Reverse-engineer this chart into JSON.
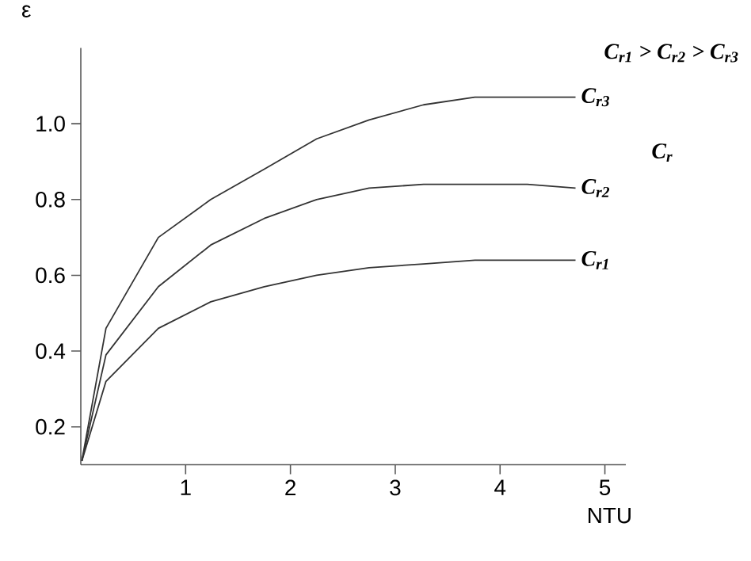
{
  "chart_data": {
    "type": "line",
    "xlabel": "NTU",
    "ylabel": "ε",
    "xlim": [
      0,
      5.2
    ],
    "ylim": [
      0.1,
      1.2
    ],
    "xticks": [
      1,
      2,
      3,
      4,
      5
    ],
    "yticks": [
      0.2,
      0.4,
      0.6,
      0.8,
      {
        "value": 1,
        "label": "1.0"
      }
    ],
    "x": [
      0.01,
      0.24,
      0.74,
      1.24,
      1.75,
      2.25,
      2.75,
      3.27,
      3.76,
      4.26,
      4.72
    ],
    "series": [
      {
        "name": "C$_{r1}$",
        "color": "#333333",
        "values": [
          0.11,
          0.32,
          0.46,
          0.53,
          0.57,
          0.6,
          0.62,
          0.63,
          0.64,
          0.64,
          0.64
        ]
      },
      {
        "name": "C$_{r2}$",
        "color": "#333333",
        "values": [
          0.11,
          0.39,
          0.57,
          0.68,
          0.75,
          0.8,
          0.83,
          0.84,
          0.84,
          0.84,
          0.83
        ]
      },
      {
        "name": "C$_{r3}$",
        "color": "#333333",
        "values": [
          0.11,
          0.46,
          0.7,
          0.8,
          0.88,
          0.96,
          1.01,
          1.05,
          1.07,
          1.07,
          1.07
        ]
      }
    ],
    "annotations": [
      "C$_{r1}$ > C$_{r2}$ > C$_{r3}$",
      "C$_{r}$"
    ],
    "grid": false,
    "legend": false,
    "marker": "none",
    "line_style": "solid"
  }
}
